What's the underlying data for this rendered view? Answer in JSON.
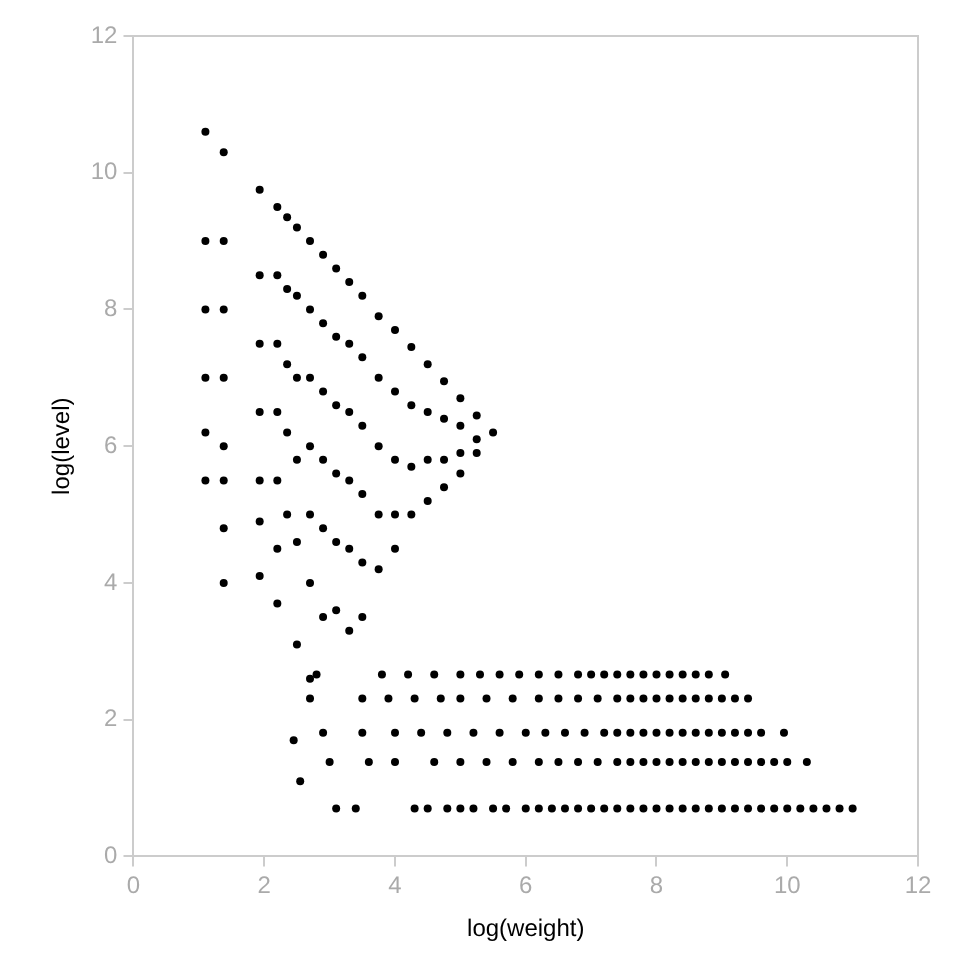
{
  "chart_data": {
    "type": "scatter",
    "xlabel": "log(weight)",
    "ylabel": "log(level)",
    "xlim": [
      0,
      12
    ],
    "ylim": [
      0,
      12
    ],
    "xticks": [
      0,
      2,
      4,
      6,
      8,
      10,
      12
    ],
    "yticks": [
      0,
      2,
      4,
      6,
      8,
      10,
      12
    ],
    "grid": false,
    "legend": false,
    "marker": "circle",
    "series": [
      {
        "color": "#000000",
        "x": [
          1.1,
          1.1,
          1.1,
          1.1,
          1.1,
          1.1,
          1.38,
          1.38,
          1.38,
          1.38,
          1.38,
          1.38,
          1.38,
          1.38,
          1.93,
          1.93,
          1.93,
          1.93,
          1.93,
          1.93,
          1.93,
          2.2,
          2.2,
          2.2,
          2.2,
          2.2,
          2.2,
          2.2,
          2.35,
          2.35,
          2.35,
          2.35,
          2.35,
          2.5,
          2.5,
          2.5,
          2.5,
          2.5,
          2.5,
          2.7,
          2.7,
          2.7,
          2.7,
          2.7,
          2.7,
          2.7,
          2.9,
          2.9,
          2.9,
          2.9,
          2.9,
          2.9,
          3.1,
          3.1,
          3.1,
          3.1,
          3.1,
          3.1,
          3.3,
          3.3,
          3.3,
          3.3,
          3.3,
          3.3,
          3.5,
          3.5,
          3.5,
          3.5,
          3.5,
          3.5,
          3.75,
          3.75,
          3.75,
          3.75,
          3.75,
          4.0,
          4.0,
          4.0,
          4.0,
          4.0,
          4.25,
          4.25,
          4.25,
          4.25,
          4.5,
          4.5,
          4.5,
          4.5,
          4.75,
          4.75,
          4.75,
          4.75,
          5.0,
          5.0,
          5.0,
          5.0,
          5.25,
          5.25,
          5.25,
          5.5,
          2.45,
          2.55
        ],
        "values": [
          10.6,
          9,
          8,
          7,
          6.2,
          5.5,
          10.3,
          9,
          8,
          7,
          6,
          5.5,
          4.8,
          4.0,
          9.75,
          8.5,
          7.5,
          6.5,
          5.5,
          4.9,
          4.1,
          9.5,
          8.5,
          7.5,
          6.5,
          5.5,
          4.5,
          3.7,
          9.35,
          8.3,
          7.2,
          6.2,
          5.0,
          9.2,
          8.2,
          7.0,
          5.8,
          4.6,
          3.1,
          9.0,
          8.0,
          7.0,
          6.0,
          5.0,
          4.0,
          2.6,
          8.8,
          7.8,
          6.8,
          5.8,
          4.8,
          3.5,
          8.6,
          7.6,
          6.6,
          5.6,
          4.6,
          3.6,
          8.4,
          7.5,
          6.5,
          5.5,
          4.5,
          3.3,
          8.2,
          7.3,
          6.3,
          5.3,
          4.3,
          3.5,
          7.9,
          7.0,
          6.0,
          5.0,
          4.2,
          7.7,
          6.8,
          5.8,
          5.0,
          4.5,
          7.45,
          6.6,
          5.7,
          5.0,
          7.2,
          6.5,
          5.8,
          5.2,
          6.95,
          6.4,
          5.8,
          5.4,
          6.7,
          6.3,
          5.9,
          5.6,
          6.45,
          6.1,
          5.9,
          6.2,
          1.7,
          1.1
        ]
      },
      {
        "color": "#000000",
        "x": [
          3.1,
          3.4,
          4.3,
          4.5,
          4.8,
          5.0,
          5.2,
          5.5,
          5.7,
          6.0,
          6.2,
          6.4,
          6.6,
          6.8,
          7.0,
          7.2,
          7.4,
          7.6,
          7.8,
          8.0,
          8.2,
          8.4,
          8.6,
          8.8,
          9.0,
          9.2,
          9.4,
          9.6,
          9.8,
          10.0,
          10.2,
          10.4,
          10.6,
          10.8,
          11.0
        ],
        "values": [
          0.7,
          0.7,
          0.7,
          0.7,
          0.7,
          0.7,
          0.7,
          0.7,
          0.7,
          0.7,
          0.7,
          0.7,
          0.7,
          0.7,
          0.7,
          0.7,
          0.7,
          0.7,
          0.7,
          0.7,
          0.7,
          0.7,
          0.7,
          0.7,
          0.7,
          0.7,
          0.7,
          0.7,
          0.7,
          0.7,
          0.7,
          0.7,
          0.7,
          0.7,
          0.7
        ]
      },
      {
        "color": "#000000",
        "x": [
          3.0,
          3.6,
          4.0,
          4.6,
          5.0,
          5.4,
          5.8,
          6.2,
          6.5,
          6.8,
          7.1,
          7.4,
          7.6,
          7.8,
          8.0,
          8.2,
          8.4,
          8.6,
          8.8,
          9.0,
          9.2,
          9.4,
          9.6,
          9.8,
          10.0,
          10.3
        ],
        "values": [
          1.38,
          1.38,
          1.38,
          1.38,
          1.38,
          1.38,
          1.38,
          1.38,
          1.38,
          1.38,
          1.38,
          1.38,
          1.38,
          1.38,
          1.38,
          1.38,
          1.38,
          1.38,
          1.38,
          1.38,
          1.38,
          1.38,
          1.38,
          1.38,
          1.38,
          1.38
        ]
      },
      {
        "color": "#000000",
        "x": [
          2.9,
          3.5,
          4.0,
          4.4,
          4.8,
          5.2,
          5.6,
          6.0,
          6.3,
          6.6,
          6.9,
          7.2,
          7.4,
          7.6,
          7.8,
          8.0,
          8.2,
          8.4,
          8.6,
          8.8,
          9.0,
          9.2,
          9.4,
          9.6,
          9.95
        ],
        "values": [
          1.81,
          1.81,
          1.81,
          1.81,
          1.81,
          1.81,
          1.81,
          1.81,
          1.81,
          1.81,
          1.81,
          1.81,
          1.81,
          1.81,
          1.81,
          1.81,
          1.81,
          1.81,
          1.81,
          1.81,
          1.81,
          1.81,
          1.81,
          1.81,
          1.81
        ]
      },
      {
        "color": "#000000",
        "x": [
          2.7,
          3.5,
          3.9,
          4.3,
          4.7,
          5.0,
          5.4,
          5.8,
          6.2,
          6.5,
          6.8,
          7.1,
          7.4,
          7.6,
          7.8,
          8.0,
          8.2,
          8.4,
          8.6,
          8.8,
          9.0,
          9.2,
          9.4
        ],
        "values": [
          2.31,
          2.31,
          2.31,
          2.31,
          2.31,
          2.31,
          2.31,
          2.31,
          2.31,
          2.31,
          2.31,
          2.31,
          2.31,
          2.31,
          2.31,
          2.31,
          2.31,
          2.31,
          2.31,
          2.31,
          2.31,
          2.31,
          2.31
        ]
      },
      {
        "color": "#000000",
        "x": [
          2.8,
          3.8,
          4.2,
          4.6,
          5.0,
          5.3,
          5.6,
          5.9,
          6.2,
          6.5,
          6.8,
          7.0,
          7.2,
          7.4,
          7.6,
          7.8,
          8.0,
          8.2,
          8.4,
          8.6,
          8.8,
          9.05
        ],
        "values": [
          2.66,
          2.66,
          2.66,
          2.66,
          2.66,
          2.66,
          2.66,
          2.66,
          2.66,
          2.66,
          2.66,
          2.66,
          2.66,
          2.66,
          2.66,
          2.66,
          2.66,
          2.66,
          2.66,
          2.66,
          2.66,
          2.66
        ]
      }
    ]
  }
}
